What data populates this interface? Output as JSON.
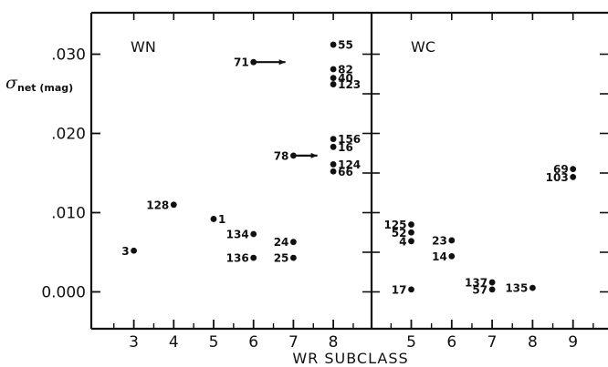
{
  "chart_data": {
    "type": "scatter",
    "xlabel": "WR SUBCLASS",
    "ylabel": {
      "main": "σ",
      "sub": "net (mag)"
    },
    "ylim": [
      -0.005,
      0.035
    ],
    "y_ticks": [
      ".030",
      ".020",
      ".010",
      "0.000"
    ],
    "y_tick_values": [
      0.03,
      0.02,
      0.01,
      0.0
    ],
    "grid": false,
    "panels": [
      {
        "label": "WN",
        "xlim": [
          2,
          9
        ],
        "x_ticks": [
          "3",
          "4",
          "5",
          "6",
          "7",
          "8"
        ],
        "points": [
          {
            "id": "55",
            "x": 8,
            "y": 0.0312
          },
          {
            "id": "71",
            "x": 6,
            "y": 0.029,
            "arrow_to": 6.8
          },
          {
            "id": "82",
            "x": 8,
            "y": 0.0281
          },
          {
            "id": "40",
            "x": 8,
            "y": 0.027
          },
          {
            "id": "123",
            "x": 8,
            "y": 0.0262
          },
          {
            "id": "156",
            "x": 8,
            "y": 0.0193
          },
          {
            "id": "16",
            "x": 8,
            "y": 0.0183
          },
          {
            "id": "78",
            "x": 7,
            "y": 0.0172,
            "arrow_to": 7.6
          },
          {
            "id": "124",
            "x": 8,
            "y": 0.0161
          },
          {
            "id": "66",
            "x": 8,
            "y": 0.0152
          },
          {
            "id": "128",
            "x": 4,
            "y": 0.011
          },
          {
            "id": "1",
            "x": 5,
            "y": 0.0092
          },
          {
            "id": "134",
            "x": 6,
            "y": 0.0073
          },
          {
            "id": "24",
            "x": 7,
            "y": 0.0063
          },
          {
            "id": "3",
            "x": 3,
            "y": 0.0052
          },
          {
            "id": "136",
            "x": 6,
            "y": 0.0043
          },
          {
            "id": "25",
            "x": 7,
            "y": 0.0043
          }
        ]
      },
      {
        "label": "WC",
        "xlim": [
          4,
          9.6
        ],
        "x_ticks": [
          "5",
          "6",
          "7",
          "8",
          "9"
        ],
        "points": [
          {
            "id": "69",
            "x": 9,
            "y": 0.0155
          },
          {
            "id": "103",
            "x": 9,
            "y": 0.0145
          },
          {
            "id": "125",
            "x": 5,
            "y": 0.0085
          },
          {
            "id": "52",
            "x": 5,
            "y": 0.0075
          },
          {
            "id": "23",
            "x": 6,
            "y": 0.0065
          },
          {
            "id": "4",
            "x": 5,
            "y": 0.0064
          },
          {
            "id": "14",
            "x": 6,
            "y": 0.0045
          },
          {
            "id": "137",
            "x": 7,
            "y": 0.0012
          },
          {
            "id": "17",
            "x": 5,
            "y": 0.0003
          },
          {
            "id": "57",
            "x": 7,
            "y": 0.0003
          },
          {
            "id": "135",
            "x": 8,
            "y": 0.0005
          }
        ]
      }
    ]
  }
}
